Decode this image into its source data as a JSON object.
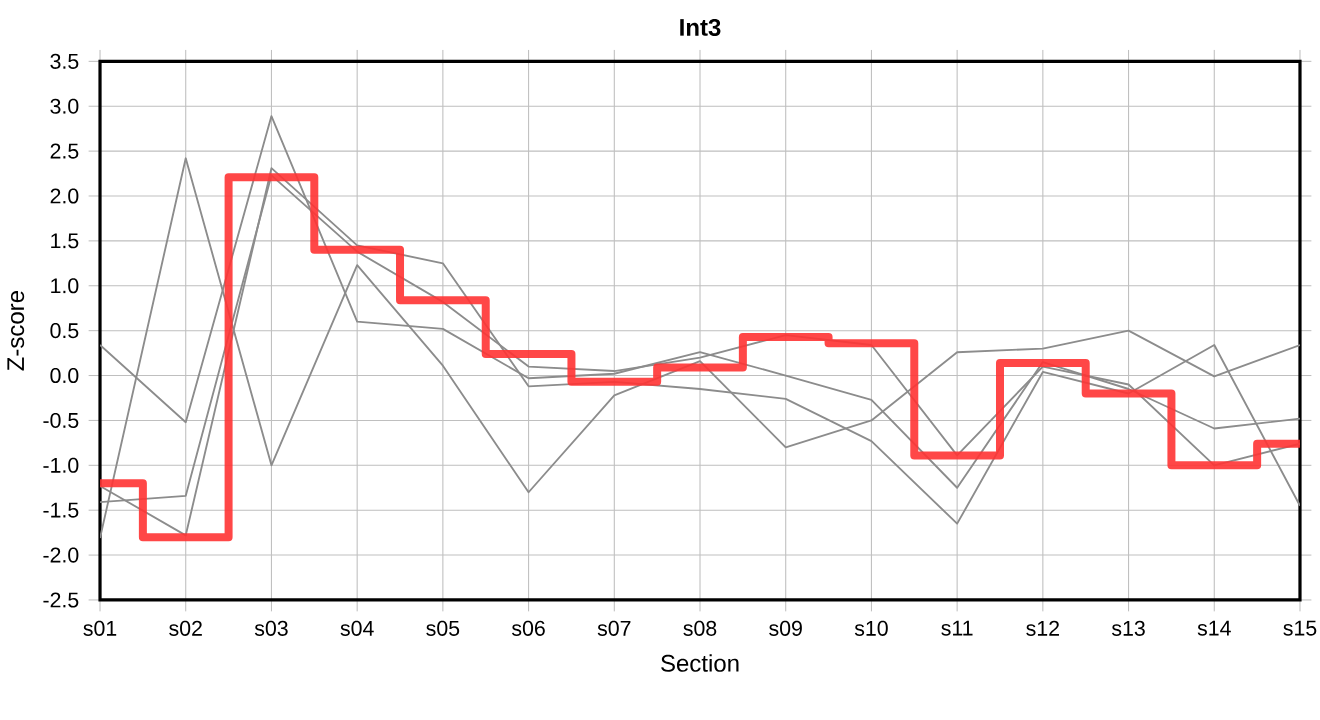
{
  "chart_data": {
    "type": "line",
    "title": "Int3",
    "xlabel": "Section",
    "ylabel": "Z-score",
    "categories": [
      "s01",
      "s02",
      "s03",
      "s04",
      "s05",
      "s06",
      "s07",
      "s08",
      "s09",
      "s10",
      "s11",
      "s12",
      "s13",
      "s14",
      "s15"
    ],
    "ylim": [
      -2.5,
      3.5
    ],
    "yticks": [
      -2.5,
      {
        "value": -2,
        "label": "-2.0"
      },
      -1.5,
      {
        "value": -1,
        "label": "-1.0"
      },
      -0.5,
      {
        "value": 0,
        "label": "0.0"
      },
      0.5,
      {
        "value": 1,
        "label": "1.0"
      },
      1.5,
      {
        "value": 2,
        "label": "2.0"
      },
      2.5,
      {
        "value": 3,
        "label": "3.0"
      },
      3.5
    ],
    "grid": true,
    "marker": "none",
    "line_style": "solid",
    "series": [
      {
        "color": "#8c8c8c",
        "values": [
          0.34,
          -0.52,
          2.89,
          0.6,
          0.52,
          -0.03,
          0.02,
          0.26,
          0.0,
          -0.27,
          -1.25,
          0.15,
          -0.15,
          -0.59,
          -0.48
        ]
      },
      {
        "color": "#8c8c8c",
        "values": [
          -1.81,
          2.42,
          -1.0,
          1.23,
          0.11,
          -1.3,
          -0.22,
          0.16,
          -0.8,
          -0.5,
          0.26,
          0.3,
          0.5,
          -0.01,
          0.34
        ]
      },
      {
        "color": "#8c8c8c",
        "values": [
          -1.23,
          -1.78,
          2.31,
          1.45,
          1.25,
          -0.12,
          -0.07,
          -0.15,
          -0.26,
          -0.73,
          -1.65,
          0.04,
          -0.2,
          0.34,
          -1.45
        ]
      },
      {
        "color": "#8c8c8c",
        "values": [
          -1.41,
          -1.34,
          2.23,
          1.38,
          0.82,
          0.1,
          0.05,
          0.2,
          0.45,
          0.34,
          -0.89,
          0.1,
          -0.1,
          -1.0,
          -0.76
        ]
      },
      {
        "type": "step",
        "color": "#ff3333",
        "values": [
          -1.2,
          -1.8,
          2.21,
          1.4,
          0.84,
          0.24,
          -0.07,
          0.09,
          0.43,
          0.36,
          -0.89,
          0.14,
          -0.2,
          -1.0,
          -0.76
        ]
      }
    ]
  }
}
